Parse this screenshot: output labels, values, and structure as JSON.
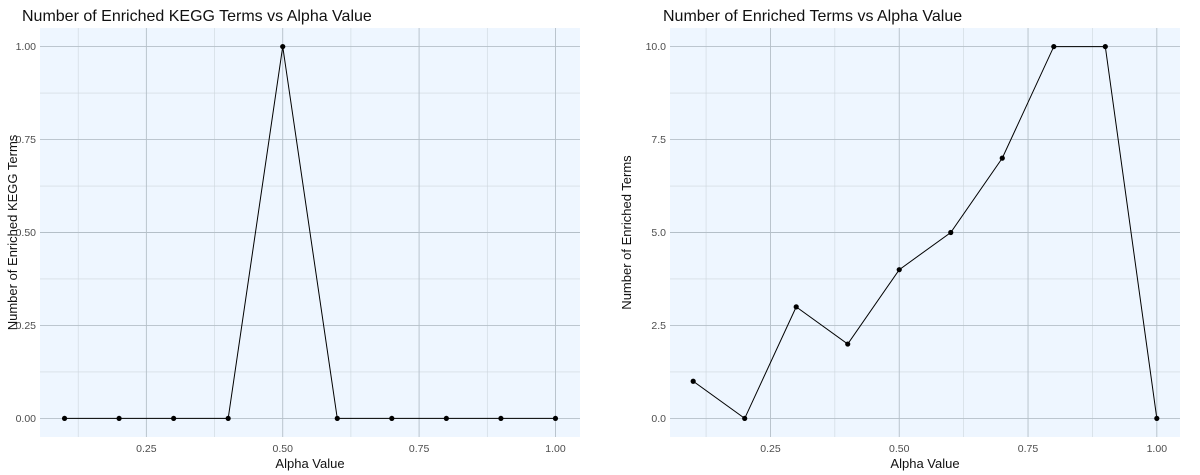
{
  "chart_data": [
    {
      "type": "line",
      "title": "Number of Enriched KEGG Terms vs Alpha Value",
      "xlabel": "Alpha Value",
      "ylabel": "Number of Enriched KEGG Terms",
      "x": [
        0.1,
        0.2,
        0.3,
        0.4,
        0.5,
        0.6,
        0.7,
        0.8,
        0.9,
        1.0
      ],
      "y": [
        0,
        0,
        0,
        0,
        1,
        0,
        0,
        0,
        0,
        0
      ],
      "xlim": [
        0.055,
        1.045
      ],
      "ylim": [
        -0.05,
        1.05
      ],
      "xticks": [
        0.25,
        0.5,
        0.75,
        1.0
      ],
      "xtick_labels": [
        "0.25",
        "0.50",
        "0.75",
        "1.00"
      ],
      "yticks": [
        0,
        0.25,
        0.5,
        0.75,
        1.0
      ],
      "ytick_labels": [
        "0.00",
        "0.25",
        "0.50",
        "0.75",
        "1.00"
      ],
      "grid": true,
      "colors": {
        "panel": "#eef6ff",
        "line": "#000000"
      }
    },
    {
      "type": "line",
      "title": "Number of Enriched Terms vs Alpha Value",
      "xlabel": "Alpha Value",
      "ylabel": "Number of Enriched Terms",
      "x": [
        0.1,
        0.2,
        0.3,
        0.4,
        0.5,
        0.6,
        0.7,
        0.8,
        0.9,
        1.0
      ],
      "y": [
        1,
        0,
        3,
        2,
        4,
        5,
        7,
        10,
        10,
        0
      ],
      "xlim": [
        0.055,
        1.045
      ],
      "ylim": [
        -0.5,
        10.5
      ],
      "xticks": [
        0.25,
        0.5,
        0.75,
        1.0
      ],
      "xtick_labels": [
        "0.25",
        "0.50",
        "0.75",
        "1.00"
      ],
      "yticks": [
        0,
        2.5,
        5.0,
        7.5,
        10.0
      ],
      "ytick_labels": [
        "0.0",
        "2.5",
        "5.0",
        "7.5",
        "10.0"
      ],
      "grid": true,
      "colors": {
        "panel": "#eef6ff",
        "line": "#000000"
      }
    }
  ]
}
